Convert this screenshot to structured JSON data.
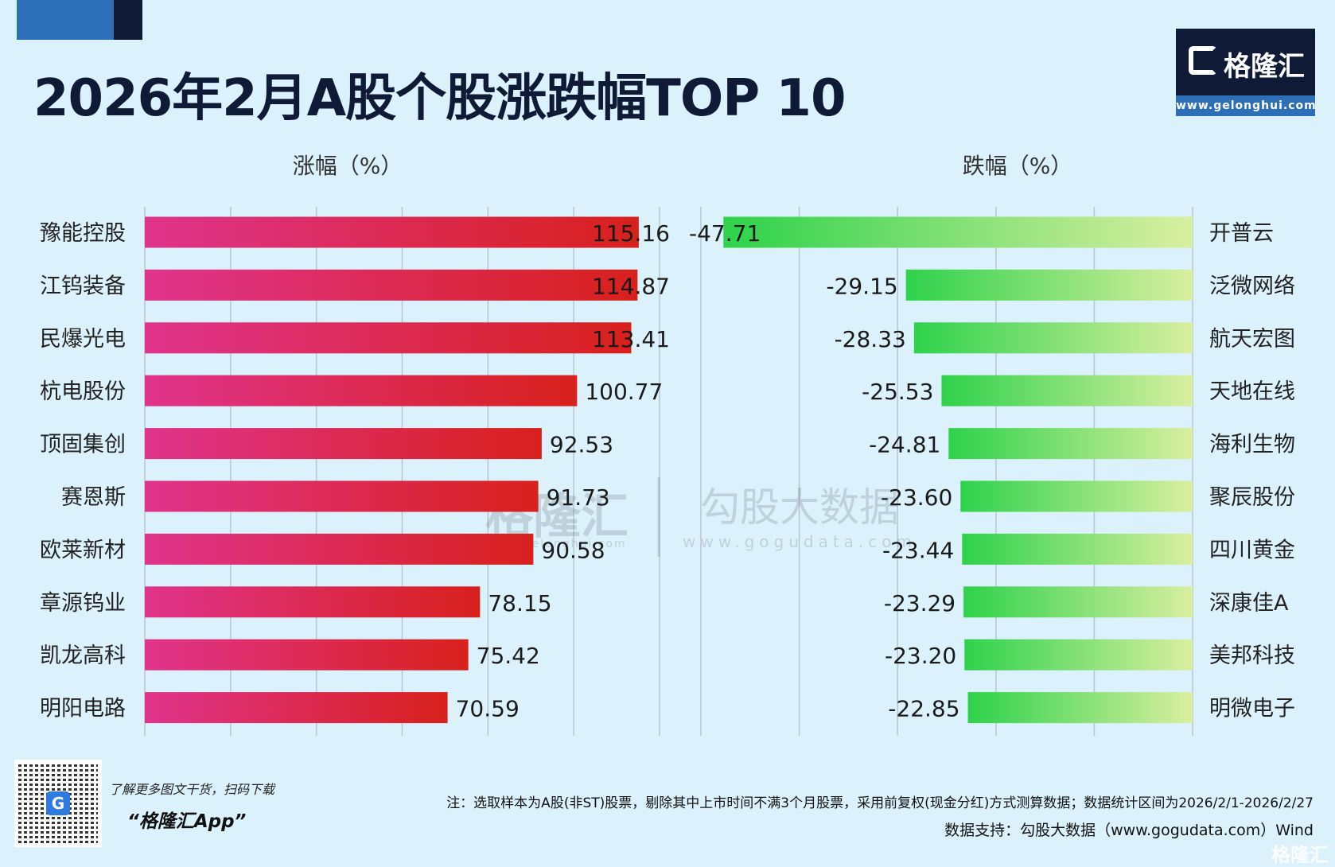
{
  "title": "2026年2月A股个股涨跌幅TOP 10",
  "logo": {
    "name": "格隆汇",
    "url": "www.gelonghui.com"
  },
  "watermark": {
    "left_name": "格隆汇",
    "left_url": "www.gelonghui.com",
    "right_name": "勾股大数据",
    "right_url": "www.gogudata.com"
  },
  "chart_data": [
    {
      "type": "bar",
      "orientation": "horizontal",
      "title": "涨幅（%）",
      "xlim": [
        0,
        120
      ],
      "grid": true,
      "grid_step": 20,
      "bar_gradient": [
        "#e0348c",
        "#d8201c"
      ],
      "categories": [
        "豫能控股",
        "江钨装备",
        "民爆光电",
        "杭电股份",
        "顶固集创",
        "赛恩斯",
        "欧莱新材",
        "章源钨业",
        "凯龙高科",
        "明阳电路"
      ],
      "values": [
        115.16,
        114.87,
        113.41,
        100.77,
        92.53,
        91.73,
        90.58,
        78.15,
        75.42,
        70.59
      ],
      "labels": [
        "115.16",
        "114.87",
        "113.41",
        "100.77",
        "92.53",
        "91.73",
        "90.58",
        "78.15",
        "75.42",
        "70.59"
      ]
    },
    {
      "type": "bar",
      "orientation": "horizontal",
      "title": "跌幅（%）",
      "xlim": [
        -50,
        0
      ],
      "grid": true,
      "grid_step": 10,
      "bar_gradient": [
        "#2ed24b",
        "#d9efa0"
      ],
      "categories": [
        "开普云",
        "泛微网络",
        "航天宏图",
        "天地在线",
        "海利生物",
        "聚辰股份",
        "四川黄金",
        "深康佳A",
        "美邦科技",
        "明微电子"
      ],
      "values": [
        -47.71,
        -29.15,
        -28.33,
        -25.53,
        -24.81,
        -23.6,
        -23.44,
        -23.29,
        -23.2,
        -22.85
      ],
      "labels": [
        "-47.71",
        "-29.15",
        "-28.33",
        "-25.53",
        "-24.81",
        "-23.60",
        "-23.44",
        "-23.29",
        "-23.20",
        "-22.85"
      ]
    }
  ],
  "footer": {
    "promo_line": "了解更多图文干货，扫码下载",
    "promo_app": "“格隆汇App”",
    "note": "注：选取样本为A股(非ST)股票，剔除其中上市时间不满3个月股票，采用前复权(现金分红)方式测算数据；数据统计区间为2026/2/1-2026/2/27",
    "source": "数据支持：勾股大数据（www.gogudata.com）Wind",
    "corner_logo": "格隆汇"
  }
}
